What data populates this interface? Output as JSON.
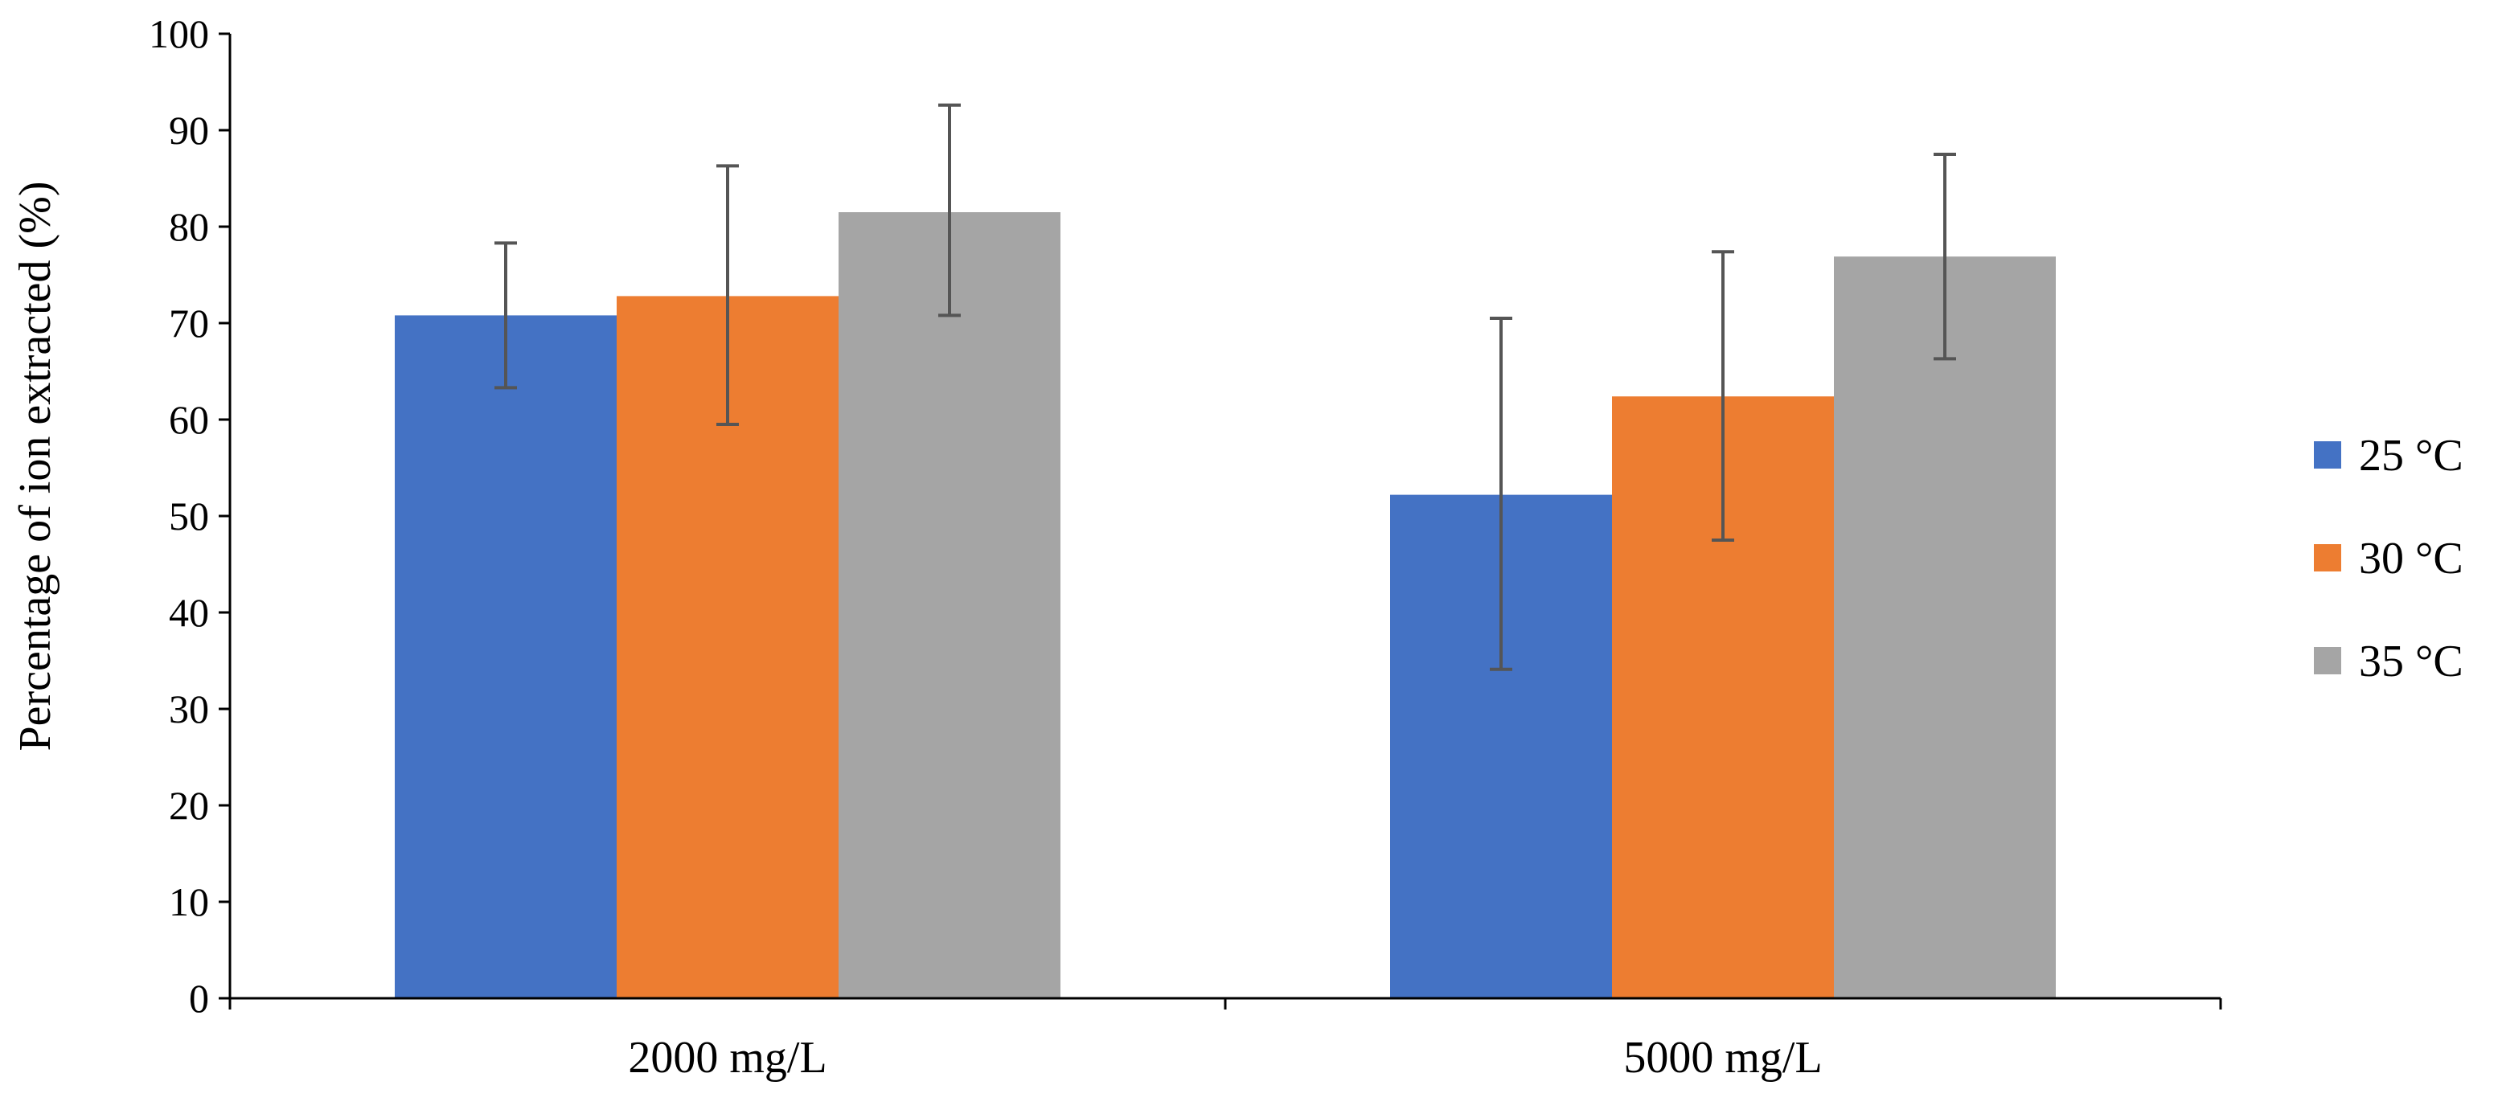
{
  "chart_data": {
    "type": "bar",
    "title": "",
    "xlabel": "",
    "ylabel": "Percentage of ion extracted (%)",
    "ylim": [
      0,
      100
    ],
    "yticks": [
      0,
      10,
      20,
      30,
      40,
      50,
      60,
      70,
      80,
      90,
      100
    ],
    "grid": false,
    "legend_position": "right",
    "categories": [
      "2000 mg/L",
      "5000 mg/L"
    ],
    "series": [
      {
        "name": "25 °C",
        "color": "#4472C4",
        "values": [
          70.8,
          52.2
        ],
        "error_low": [
          63.3,
          34.1
        ],
        "error_high": [
          78.3,
          70.5
        ]
      },
      {
        "name": "30 °C",
        "color": "#ED7D31",
        "values": [
          72.8,
          62.4
        ],
        "error_low": [
          59.5,
          47.5
        ],
        "error_high": [
          86.3,
          77.4
        ]
      },
      {
        "name": "35 °C",
        "color": "#A5A5A5",
        "values": [
          81.5,
          76.9
        ],
        "error_low": [
          70.8,
          66.3
        ],
        "error_high": [
          92.6,
          87.5
        ]
      }
    ]
  }
}
